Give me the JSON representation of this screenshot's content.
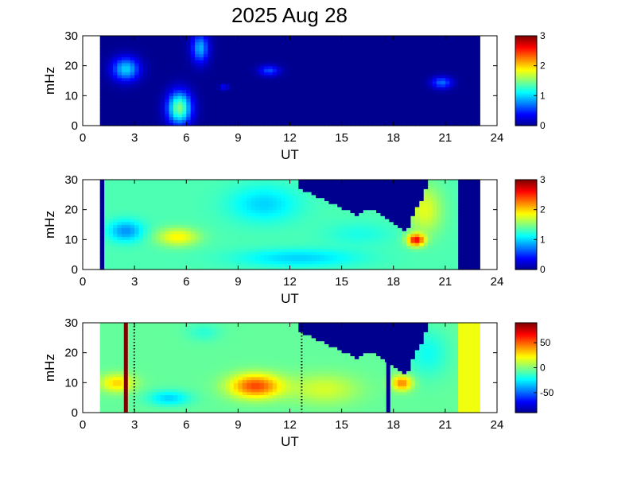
{
  "page_title": "2025 Aug 28",
  "colors": {
    "jet": [
      "#00008f",
      "#0000ff",
      "#0080ff",
      "#00ffff",
      "#80ff80",
      "#ffff00",
      "#ff8000",
      "#ff0000",
      "#800000"
    ],
    "background": "#000080"
  },
  "chart_data": [
    {
      "type": "heatmap",
      "xlabel": "UT",
      "ylabel": "mHz",
      "xlim": [
        0,
        24
      ],
      "ylim": [
        0,
        30
      ],
      "xticks": [
        "0",
        "3",
        "6",
        "9",
        "12",
        "15",
        "18",
        "21",
        "24"
      ],
      "yticks": [
        "0",
        "10",
        "20",
        "30"
      ],
      "data_x_range": [
        1,
        23
      ],
      "colorbar": {
        "range": [
          0,
          3
        ],
        "ticks": [
          "0",
          "1",
          "2",
          "3"
        ]
      },
      "background_value": 0,
      "blobs": [
        {
          "x": 2.5,
          "y": 19,
          "rx": 0.8,
          "ry": 4,
          "value": 1.0
        },
        {
          "x": 5.6,
          "y": 6,
          "rx": 0.7,
          "ry": 5.5,
          "value": 1.5
        },
        {
          "x": 6.8,
          "y": 26,
          "rx": 0.5,
          "ry": 5,
          "value": 0.9
        },
        {
          "x": 10.8,
          "y": 18.5,
          "rx": 0.6,
          "ry": 1.8,
          "value": 0.6
        },
        {
          "x": 8.2,
          "y": 13,
          "rx": 0.25,
          "ry": 1,
          "value": 0.4
        },
        {
          "x": 20.8,
          "y": 14.5,
          "rx": 0.6,
          "ry": 2,
          "value": 0.7
        }
      ]
    },
    {
      "type": "heatmap",
      "xlabel": "UT",
      "ylabel": "mHz",
      "xlim": [
        0,
        24
      ],
      "ylim": [
        0,
        30
      ],
      "xticks": [
        "0",
        "3",
        "6",
        "9",
        "12",
        "15",
        "18",
        "21",
        "24"
      ],
      "yticks": [
        "0",
        "10",
        "20",
        "30"
      ],
      "data_x_range": [
        1,
        23
      ],
      "colorbar": {
        "range": [
          0,
          3
        ],
        "ticks": [
          "0",
          "1",
          "2",
          "3"
        ]
      },
      "background_value": 1.35,
      "blobs": [
        {
          "x": 2.5,
          "y": 13,
          "rx": 1.0,
          "ry": 3.5,
          "value": 0.8
        },
        {
          "x": 5.5,
          "y": 11,
          "rx": 1.2,
          "ry": 3,
          "value": 1.9
        },
        {
          "x": 10.5,
          "y": 22,
          "rx": 2.0,
          "ry": 6,
          "value": 1.0
        },
        {
          "x": 12.5,
          "y": 4,
          "rx": 3.5,
          "ry": 3,
          "value": 1.0
        },
        {
          "x": 19.3,
          "y": 10,
          "rx": 0.5,
          "ry": 2,
          "value": 2.6
        },
        {
          "x": 19.8,
          "y": 20,
          "rx": 1.0,
          "ry": 8,
          "value": 1.8
        },
        {
          "x": 16,
          "y": 12,
          "rx": 2.0,
          "ry": 4,
          "value": 1.2
        }
      ],
      "masked_region": {
        "value": 0,
        "boundary": [
          [
            12.6,
            30
          ],
          [
            12.6,
            27
          ],
          [
            14.5,
            22
          ],
          [
            16,
            18
          ],
          [
            16.4,
            20.5
          ],
          [
            17,
            20
          ],
          [
            18,
            15
          ],
          [
            18.8,
            13
          ],
          [
            19.3,
            20
          ],
          [
            19.8,
            25
          ],
          [
            20,
            30
          ]
        ]
      },
      "masked_columns": [
        [
          1,
          1.2
        ],
        [
          21.8,
          23
        ]
      ]
    },
    {
      "type": "heatmap",
      "xlabel": "UT",
      "ylabel": "mHz",
      "xlim": [
        0,
        24
      ],
      "ylim": [
        0,
        30
      ],
      "xticks": [
        "0",
        "3",
        "6",
        "9",
        "12",
        "15",
        "18",
        "21",
        "24"
      ],
      "yticks": [
        "0",
        "10",
        "20",
        "30"
      ],
      "data_x_range": [
        1,
        23
      ],
      "colorbar": {
        "range": [
          -90,
          90
        ],
        "ticks": [
          "50",
          "0",
          "-50"
        ],
        "tick_values": [
          50,
          0,
          -50
        ]
      },
      "background_value": -5,
      "blobs": [
        {
          "x": 10,
          "y": 9,
          "rx": 1.5,
          "ry": 4,
          "value": 55
        },
        {
          "x": 7,
          "y": 27,
          "rx": 1.0,
          "ry": 3,
          "value": -15
        },
        {
          "x": 2,
          "y": 10,
          "rx": 1.0,
          "ry": 3,
          "value": 30
        },
        {
          "x": 14,
          "y": 8,
          "rx": 2.0,
          "ry": 5,
          "value": 15
        },
        {
          "x": 18.5,
          "y": 10,
          "rx": 0.6,
          "ry": 2.5,
          "value": 45
        },
        {
          "x": 20,
          "y": 20,
          "rx": 1.2,
          "ry": 8,
          "value": -20
        },
        {
          "x": 5,
          "y": 5,
          "rx": 1.2,
          "ry": 2.5,
          "value": -30
        }
      ],
      "masked_region": {
        "value": -90,
        "boundary": [
          [
            12.6,
            30
          ],
          [
            12.6,
            27
          ],
          [
            14.5,
            22
          ],
          [
            16,
            18
          ],
          [
            16.4,
            20.5
          ],
          [
            17,
            20
          ],
          [
            18,
            15
          ],
          [
            18.8,
            13
          ],
          [
            19.3,
            20
          ],
          [
            19.8,
            25
          ],
          [
            20,
            30
          ]
        ]
      },
      "vertical_lines": [
        {
          "x": 2.5,
          "value": 90
        },
        {
          "x": 17.7,
          "value": -90
        }
      ],
      "dotted_lines": [
        2.8,
        12.5
      ],
      "right_column": {
        "range": [
          21.8,
          23
        ],
        "value": 20
      }
    }
  ]
}
